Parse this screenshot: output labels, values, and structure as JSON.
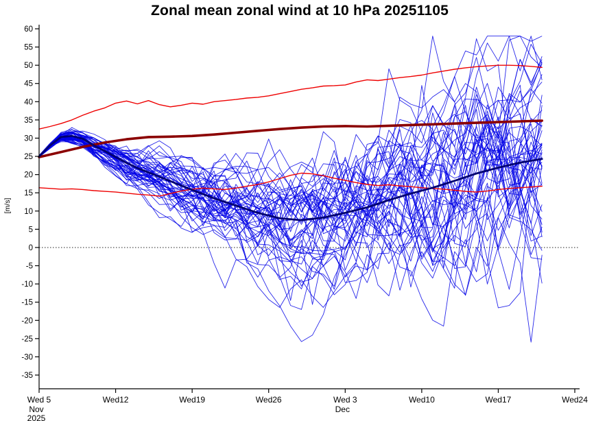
{
  "chart_data": {
    "type": "line",
    "title": "Zonal mean zonal wind at 10 hPa 20251105",
    "ylabel": "[m/s]",
    "ylim": [
      -38.8,
      61.2
    ],
    "yticks": [
      60,
      55,
      50,
      45,
      40,
      35,
      30,
      25,
      20,
      15,
      10,
      5,
      0,
      -5,
      -10,
      -15,
      -20,
      -25,
      -30,
      -35
    ],
    "zero_line": 0,
    "grid": false,
    "legend": "none",
    "x_total_days": 49,
    "xticks": [
      {
        "day": 0,
        "label": "Wed 5",
        "sublabels": [
          "Nov",
          "2025"
        ]
      },
      {
        "day": 7,
        "label": "Wed12",
        "sublabels": []
      },
      {
        "day": 14,
        "label": "Wed19",
        "sublabels": []
      },
      {
        "day": 21,
        "label": "Wed26",
        "sublabels": []
      },
      {
        "day": 28,
        "label": "Wed 3",
        "sublabels": [
          "Dec"
        ]
      },
      {
        "day": 35,
        "label": "Wed10",
        "sublabels": []
      },
      {
        "day": 42,
        "label": "Wed17",
        "sublabels": []
      },
      {
        "day": 49,
        "label": "Wed24",
        "sublabels": []
      }
    ],
    "colors": {
      "ensemble_member": "#0000e6",
      "ensemble_mean": "#000070",
      "climatology_mean": "#8b0000",
      "climatology_bound": "#ee0000",
      "axis": "#000000",
      "zero_line": "#222222"
    },
    "series": [
      {
        "name": "climatology upper bound",
        "color": "#ee0000",
        "width": 1.4,
        "x": [
          0,
          1,
          2,
          3,
          4,
          5,
          6,
          7,
          8,
          9,
          10,
          11,
          12,
          13,
          14,
          15,
          16,
          17,
          18,
          19,
          20,
          21,
          22,
          23,
          24,
          25,
          26,
          27,
          28,
          29,
          30,
          31,
          32,
          33,
          34,
          35,
          36,
          37,
          38,
          39,
          40,
          41,
          42,
          43,
          44,
          45,
          46
        ],
        "y": [
          32.5,
          33.2,
          34,
          35,
          36.3,
          37.4,
          38.3,
          39.6,
          40.2,
          39.4,
          40.3,
          39.2,
          38.6,
          39,
          39.6,
          39.3,
          40,
          40.3,
          40.6,
          41,
          41.2,
          41.6,
          42.2,
          42.8,
          43.4,
          43.8,
          44.3,
          44.4,
          44.6,
          45.4,
          46,
          45.8,
          46.2,
          46.6,
          46.9,
          47.3,
          47.9,
          48.4,
          48.9,
          49.3,
          49.6,
          49.8,
          50,
          50,
          49.9,
          49.7,
          49.4
        ]
      },
      {
        "name": "climatology lower bound",
        "color": "#ee0000",
        "width": 1.4,
        "x": [
          0,
          1,
          2,
          3,
          4,
          5,
          6,
          7,
          8,
          9,
          10,
          11,
          12,
          13,
          14,
          15,
          16,
          17,
          18,
          19,
          20,
          21,
          22,
          23,
          24,
          25,
          26,
          27,
          28,
          29,
          30,
          31,
          32,
          33,
          34,
          35,
          36,
          37,
          38,
          39,
          40,
          41,
          42,
          43,
          44,
          45,
          46
        ],
        "y": [
          16.4,
          16.2,
          16,
          16.1,
          15.9,
          15.6,
          15.4,
          15.2,
          14.9,
          14.6,
          14.4,
          14.1,
          14.8,
          15.5,
          16,
          16.3,
          16.1,
          15.9,
          16.3,
          16.8,
          17.3,
          18,
          18.9,
          19.8,
          20.4,
          20.2,
          19.7,
          19,
          18.4,
          17.8,
          17.3,
          17,
          17.2,
          16.9,
          16.7,
          16.4,
          16.2,
          16,
          15.7,
          15.4,
          15.2,
          15.5,
          15.9,
          16.2,
          16.4,
          16.6,
          16.8
        ]
      },
      {
        "name": "climatological mean",
        "color": "#8b0000",
        "width": 3.6,
        "x": [
          0,
          2,
          4,
          6,
          8,
          10,
          12,
          14,
          16,
          18,
          20,
          22,
          24,
          26,
          28,
          30,
          32,
          34,
          36,
          38,
          40,
          42,
          44,
          46
        ],
        "y": [
          24.8,
          26.2,
          27.6,
          28.8,
          29.7,
          30.3,
          30.4,
          30.6,
          31,
          31.5,
          32,
          32.5,
          32.9,
          33.2,
          33.3,
          33.2,
          33.4,
          33.6,
          33.8,
          34,
          34.2,
          34.4,
          34.6,
          34.8
        ]
      },
      {
        "name": "ensemble mean",
        "color": "#000070",
        "width": 2.8,
        "x": [
          0,
          1,
          2,
          3,
          4,
          5,
          6,
          7,
          8,
          9,
          10,
          12,
          14,
          16,
          18,
          20,
          22,
          24,
          26,
          28,
          30,
          32,
          34,
          36,
          38,
          40,
          42,
          44,
          46
        ],
        "y": [
          25,
          28,
          30.3,
          30.6,
          29.8,
          28,
          26.5,
          24.8,
          23.2,
          21.8,
          20.6,
          18.2,
          15.8,
          13.5,
          11.5,
          9.5,
          8,
          7.5,
          8.2,
          9.5,
          11,
          13,
          14.8,
          16.4,
          18.3,
          20.3,
          21.9,
          23.3,
          24.3
        ]
      }
    ],
    "ensemble": {
      "name": "ensemble members",
      "color": "#0000e6",
      "width": 0.9,
      "opacity": 0.85,
      "count": 51,
      "seed": 20251105,
      "end_day": 46,
      "x": [
        0,
        1,
        2,
        3,
        4,
        5,
        6,
        7,
        8,
        9,
        10,
        12,
        14,
        16,
        18,
        20,
        22,
        24,
        26,
        28,
        30,
        32,
        34,
        36,
        38,
        40,
        42,
        44,
        46
      ],
      "mean": [
        25,
        28,
        30.3,
        30.6,
        29.8,
        28,
        26.5,
        24.8,
        23.2,
        21.8,
        20.6,
        18.2,
        15.8,
        13.5,
        11.5,
        9.5,
        8,
        7.5,
        8.2,
        9.5,
        11,
        13,
        14.8,
        16.4,
        18.3,
        20.3,
        21.9,
        23.3,
        24.3
      ],
      "spread": [
        0.2,
        0.5,
        0.8,
        1,
        1.2,
        1.5,
        1.8,
        2.2,
        2.6,
        3,
        3.4,
        4.2,
        5,
        6,
        7,
        8,
        9,
        9.8,
        10.6,
        11.4,
        12.2,
        13,
        13.8,
        14.6,
        15.4,
        16.2,
        17,
        17.6,
        18
      ]
    }
  }
}
